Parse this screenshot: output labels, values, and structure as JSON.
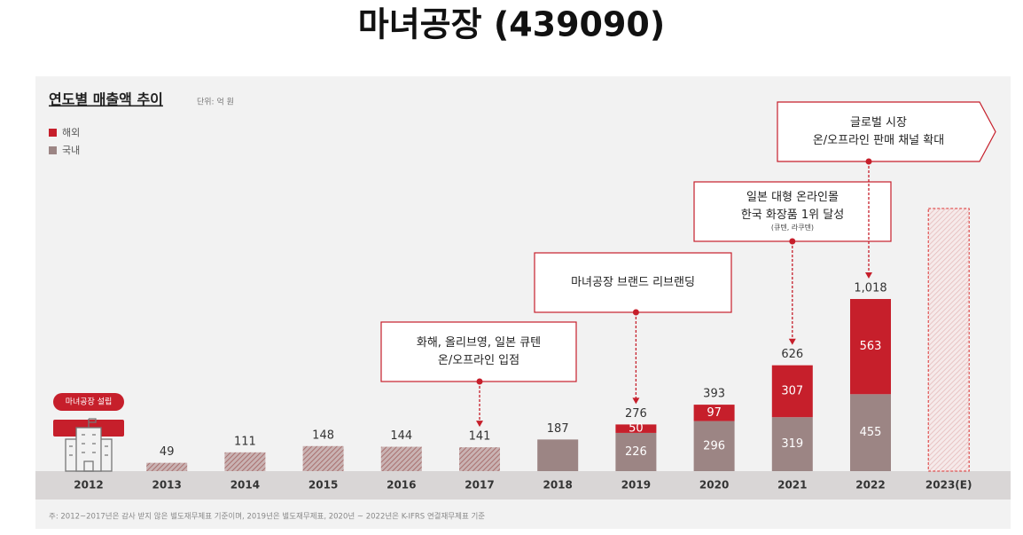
{
  "page_title": "마녀공장 (439090)",
  "chart_data": {
    "type": "stacked_bar",
    "title": "연도별 매출액 추이",
    "unit": "단위: 억 원",
    "categories": [
      "2012",
      "2013",
      "2014",
      "2015",
      "2016",
      "2017",
      "2018",
      "2019",
      "2020",
      "2021",
      "2022",
      "2023(E)"
    ],
    "series": [
      {
        "name": "국내",
        "color": "#9c8584",
        "values": [
          null,
          49,
          111,
          148,
          144,
          141,
          187,
          226,
          296,
          319,
          455,
          null
        ]
      },
      {
        "name": "해외",
        "color": "#c61f2b",
        "values": [
          null,
          null,
          null,
          null,
          null,
          null,
          null,
          50,
          97,
          307,
          563,
          null
        ]
      }
    ],
    "totals": [
      null,
      49,
      111,
      148,
      144,
      141,
      187,
      276,
      393,
      626,
      1018,
      null
    ],
    "totals_labels": [
      null,
      "49",
      "111",
      "148",
      "144",
      "141",
      "187",
      "276",
      "393",
      "626",
      "1,018",
      null
    ],
    "hatched": [
      false,
      true,
      true,
      true,
      true,
      true,
      false,
      false,
      false,
      false,
      false,
      false
    ],
    "estimate": [
      false,
      false,
      false,
      false,
      false,
      false,
      false,
      false,
      false,
      false,
      false,
      true
    ],
    "founding_label": "마녀공장 설립",
    "annotations": [
      {
        "target": "2017",
        "lines": [
          "화해, 올리브영, 일본 큐텐",
          "온/오프라인 입점"
        ]
      },
      {
        "target": "2019",
        "lines": [
          "마녀공장 브랜드 리브랜딩"
        ]
      },
      {
        "target": "2021",
        "lines": [
          "일본 대형 온라인몰",
          "한국 화장품 1위 달성"
        ],
        "note": "(큐텐, 라쿠텐)"
      },
      {
        "target": "2022",
        "lines": [
          "글로벌 시장",
          "온/오프라인 판매 채널 확대"
        ]
      }
    ],
    "footnote": "주: 2012~2017년은 감사 받지 않은 별도재무제표 기준이며, 2019년은 별도재무제표, 2020년 ~ 2022년은 K-IFRS 연결재무제표 기준"
  }
}
